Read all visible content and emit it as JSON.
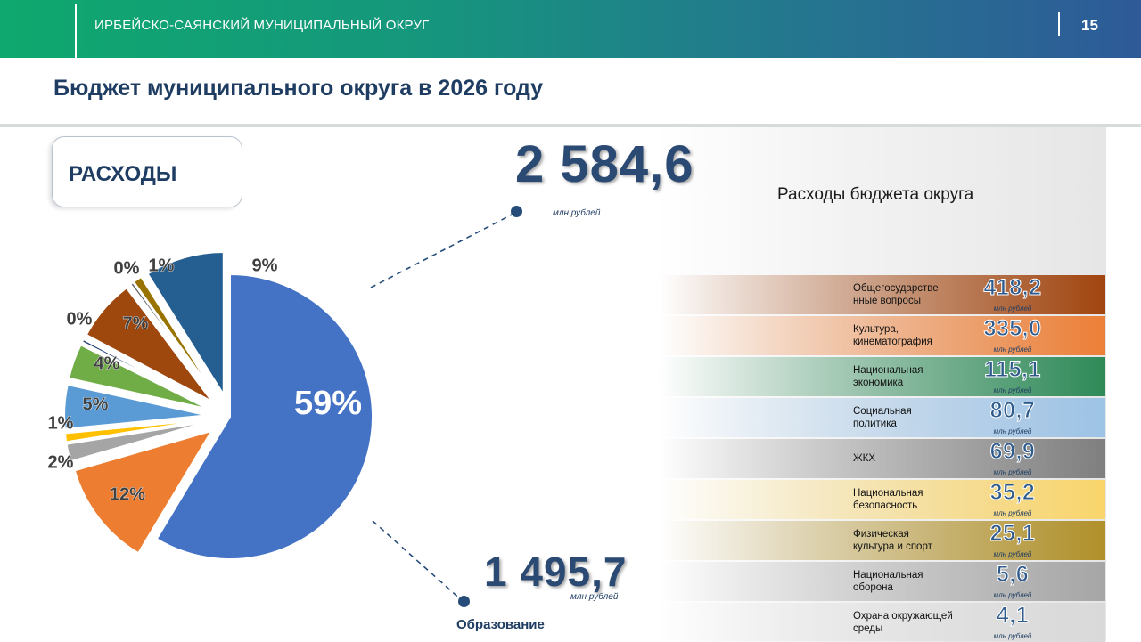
{
  "header": {
    "region": "ИРБЕЙСКО-САЯНСКИЙ МУНИЦИПАЛЬНЫЙ ОКРУГ",
    "page_number": "15"
  },
  "title": "Бюджет муниципального округа в 2026 году",
  "section_label": "РАСХОДЫ",
  "total": {
    "value": "2 584,6",
    "unit": "млн рублей"
  },
  "panel_title": "Расходы бюджета округа",
  "education": {
    "value": "1 495,7",
    "unit": "млн рублей",
    "label": "Образование"
  },
  "rows": [
    {
      "label": "Общегосударстве нные вопросы",
      "value": "418,2",
      "unit": "млн рублей",
      "color": "#a1450f"
    },
    {
      "label": "Культура, кинематография",
      "value": "335,0",
      "unit": "млн рублей",
      "color": "#ec7f37"
    },
    {
      "label": "Национальная экономика",
      "value": "115,1",
      "unit": "млн рублей",
      "color": "#2e8a58"
    },
    {
      "label": "Социальная политика",
      "value": "80,7",
      "unit": "млн рублей",
      "color": "#9dc3e6"
    },
    {
      "label": "ЖКХ",
      "value": "69,9",
      "unit": "млн рублей",
      "color": "#7f7f7f"
    },
    {
      "label": "Национальная безопасность",
      "value": "35,2",
      "unit": "млн рублей",
      "color": "#f9d56b"
    },
    {
      "label": "Физическая культура и спорт",
      "value": "25,1",
      "unit": "млн рублей",
      "color": "#b0902a"
    },
    {
      "label": "Национальная оборона",
      "value": "5,6",
      "unit": "млн рублей",
      "color": "#a6a6a6"
    },
    {
      "label": "Охрана окружающей среды",
      "value": "4,1",
      "unit": "млн рублей",
      "color": "#d9d9d9"
    }
  ],
  "chart_data": {
    "type": "pie",
    "slices": [
      {
        "value": 59,
        "label": "59%",
        "color": "#4472c4"
      },
      {
        "value": 12,
        "label": "12%",
        "color": "#ed7d31"
      },
      {
        "value": 2,
        "label": "2%",
        "color": "#a5a5a5"
      },
      {
        "value": 1,
        "label": "1%",
        "color": "#ffc000"
      },
      {
        "value": 5,
        "label": "5%",
        "color": "#5b9bd5"
      },
      {
        "value": 4,
        "label": "4%",
        "color": "#70ad47"
      },
      {
        "value": 0,
        "label": "0%",
        "color": "#264478"
      },
      {
        "value": 7,
        "label": "7%",
        "color": "#9e480e"
      },
      {
        "value": 0,
        "label": "0%",
        "color": "#636363"
      },
      {
        "value": 1,
        "label": "1%",
        "color": "#997300"
      },
      {
        "value": 9,
        "label": "9%",
        "color": "#255e91"
      }
    ]
  }
}
